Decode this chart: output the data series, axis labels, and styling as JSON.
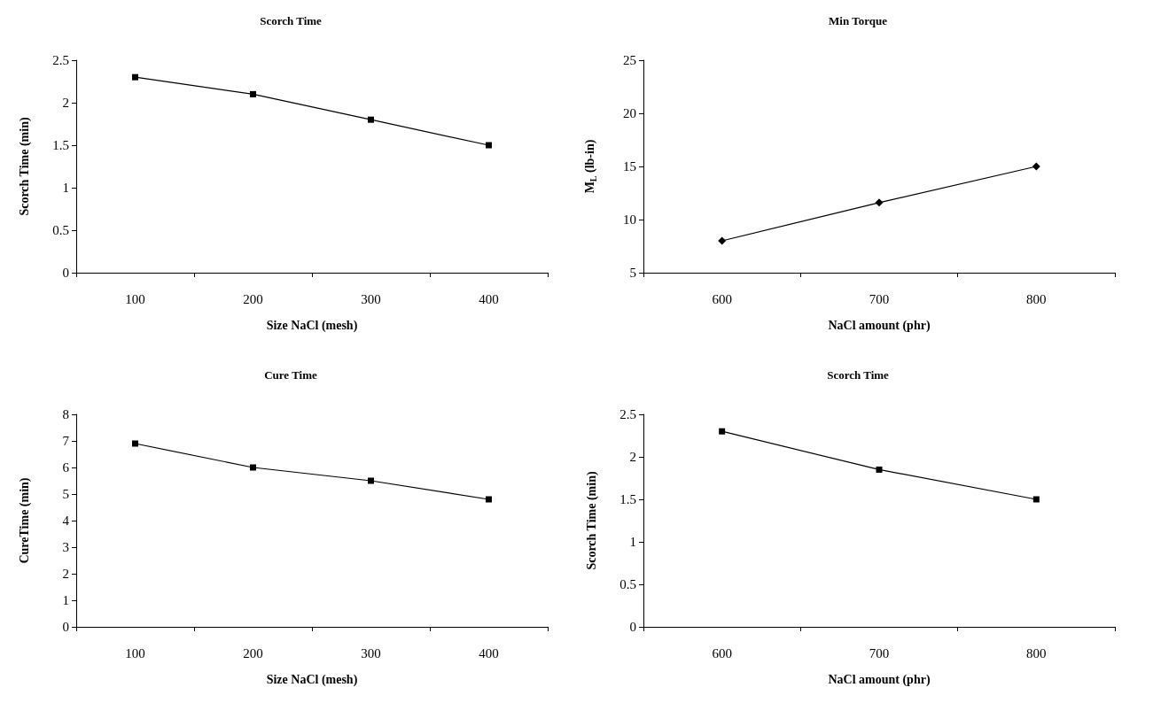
{
  "chart_data": [
    {
      "type": "line",
      "title": "Scorch Time",
      "xlabel": "Size NaCl (mesh)",
      "ylabel": "Scorch Time (min)",
      "categories": [
        "100",
        "200",
        "300",
        "400"
      ],
      "series": [
        {
          "color": "#000000",
          "values": [
            2.3,
            2.1,
            1.8,
            1.5
          ]
        }
      ],
      "ylim": [
        0,
        2.5
      ],
      "yticks": [
        0,
        0.5,
        1,
        1.5,
        2,
        2.5
      ],
      "marker": "square",
      "line_style": "solid"
    },
    {
      "type": "line",
      "title": "Min Torque",
      "xlabel": "NaCl amount (phr)",
      "ylabel": "M$_{L}$ (lb-in)",
      "categories": [
        "600",
        "700",
        "800"
      ],
      "series": [
        {
          "color": "#000000",
          "values": [
            8,
            11.6,
            15
          ]
        }
      ],
      "ylim": [
        5,
        25
      ],
      "yticks": [
        5,
        10,
        15,
        20,
        25
      ],
      "marker": "diamond",
      "line_style": "solid"
    },
    {
      "type": "line",
      "title": "Cure Time",
      "xlabel": "Size NaCl (mesh)",
      "ylabel": "CureTime (min)",
      "categories": [
        "100",
        "200",
        "300",
        "400"
      ],
      "series": [
        {
          "color": "#000000",
          "values": [
            6.9,
            6.0,
            5.5,
            4.8
          ]
        }
      ],
      "ylim": [
        0,
        8
      ],
      "yticks": [
        0,
        1,
        2,
        3,
        4,
        5,
        6,
        7,
        8
      ],
      "marker": "square",
      "line_style": "solid"
    },
    {
      "type": "line",
      "title": "Scorch Time",
      "xlabel": "NaCl amount (phr)",
      "ylabel": "Scorch Time (min)",
      "categories": [
        "600",
        "700",
        "800"
      ],
      "series": [
        {
          "color": "#000000",
          "values": [
            2.3,
            1.85,
            1.5
          ]
        }
      ],
      "ylim": [
        0,
        2.5
      ],
      "yticks": [
        0,
        0.5,
        1,
        1.5,
        2,
        2.5
      ],
      "marker": "square",
      "line_style": "solid"
    }
  ]
}
